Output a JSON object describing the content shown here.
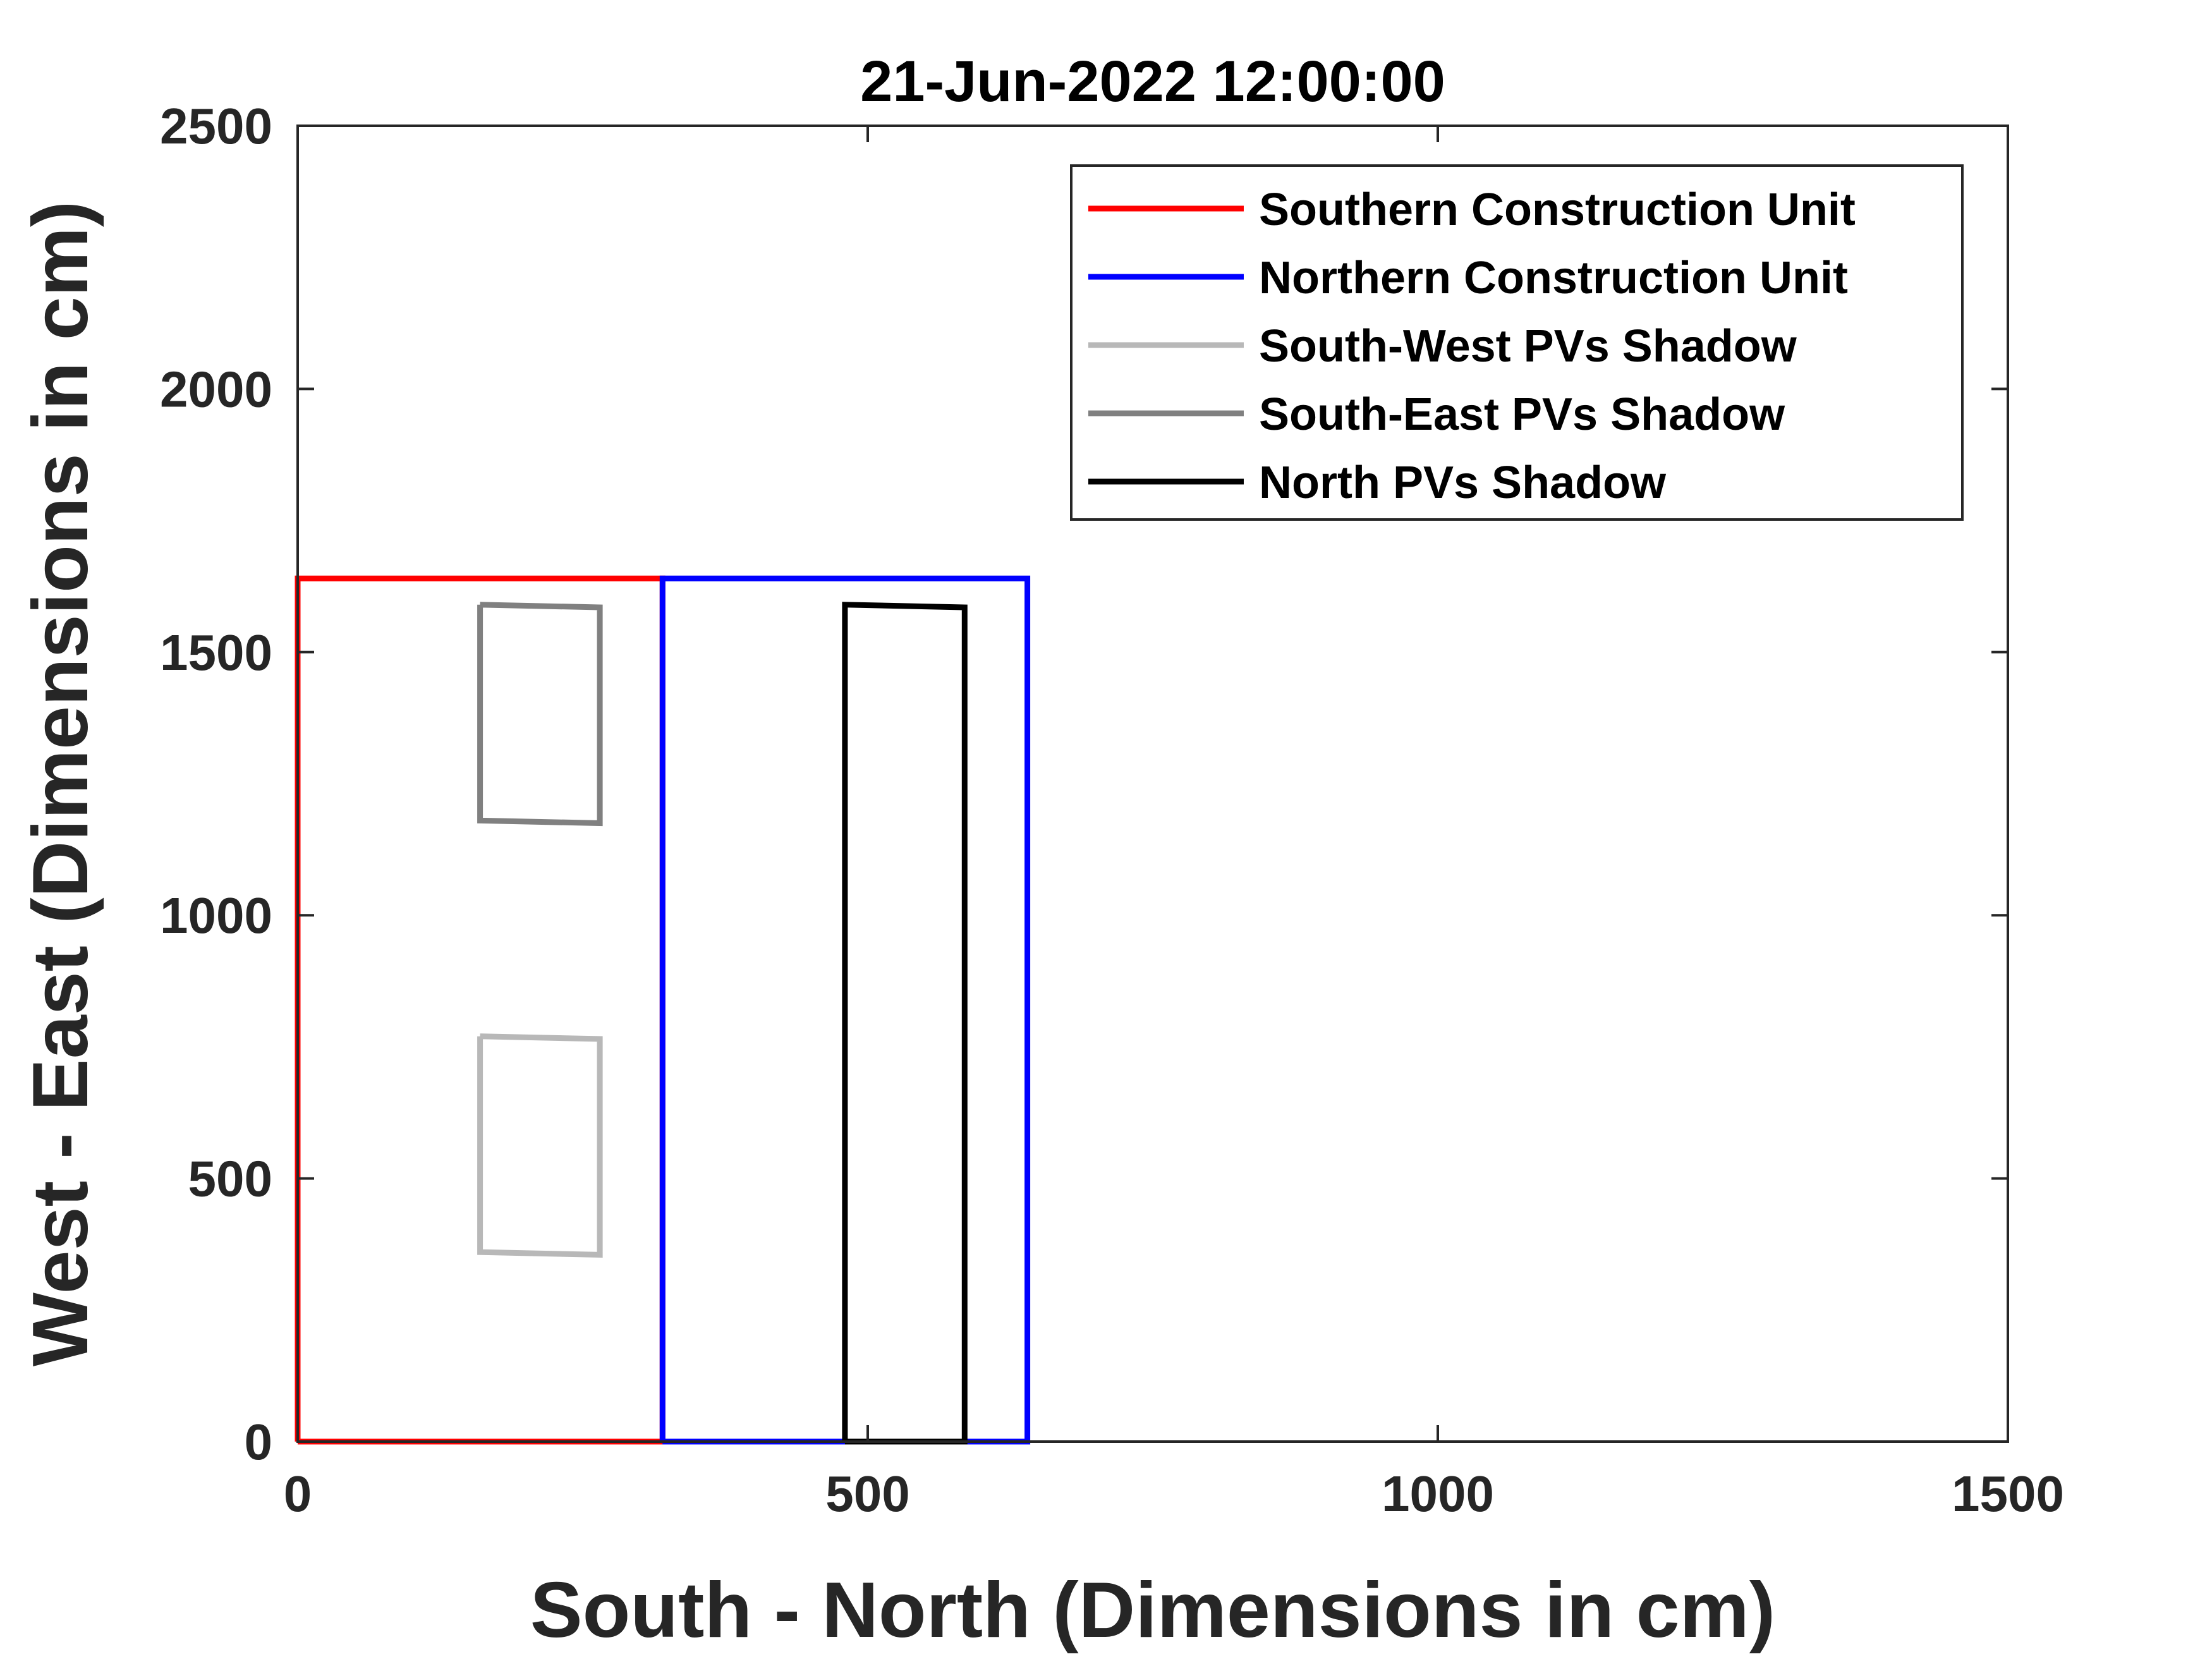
{
  "chart_data": {
    "type": "line",
    "title": "21-Jun-2022 12:00:00",
    "xlabel": "South - North (Dimensions in cm)",
    "ylabel": "West - East (Dimensions in cm)",
    "xlim": [
      0,
      1500
    ],
    "ylim": [
      0,
      2500
    ],
    "xticks": [
      0,
      500,
      1000,
      1500
    ],
    "yticks": [
      0,
      500,
      1000,
      1500,
      2000,
      2500
    ],
    "grid": false,
    "legend_position": "top-right",
    "series": [
      {
        "name": "Southern Construction Unit",
        "color": "#ff0000",
        "polygons": [
          [
            [
              0,
              0
            ],
            [
              320,
              0
            ],
            [
              320,
              1640
            ],
            [
              0,
              1640
            ],
            [
              0,
              0
            ]
          ]
        ]
      },
      {
        "name": "Northern Construction Unit",
        "color": "#0000ff",
        "polygons": [
          [
            [
              320,
              0
            ],
            [
              640,
              0
            ],
            [
              640,
              1640
            ],
            [
              320,
              1640
            ],
            [
              320,
              0
            ]
          ]
        ]
      },
      {
        "name": "South-West PVs Shadow",
        "color": "#b8b8b8",
        "polygons": [
          [
            [
              160,
              770
            ],
            [
              265,
              765
            ],
            [
              265,
              355
            ],
            [
              160,
              360
            ],
            [
              160,
              770
            ]
          ]
        ]
      },
      {
        "name": "South-East PVs Shadow",
        "color": "#808080",
        "polygons": [
          [
            [
              160,
              1590
            ],
            [
              265,
              1585
            ],
            [
              265,
              1175
            ],
            [
              160,
              1180
            ],
            [
              160,
              1590
            ]
          ]
        ]
      },
      {
        "name": "North PVs Shadow",
        "color": "#000000",
        "polygons": [
          [
            [
              480,
              0
            ],
            [
              585,
              0
            ],
            [
              585,
              1585
            ],
            [
              480,
              1590
            ],
            [
              480,
              0
            ]
          ]
        ]
      }
    ]
  }
}
